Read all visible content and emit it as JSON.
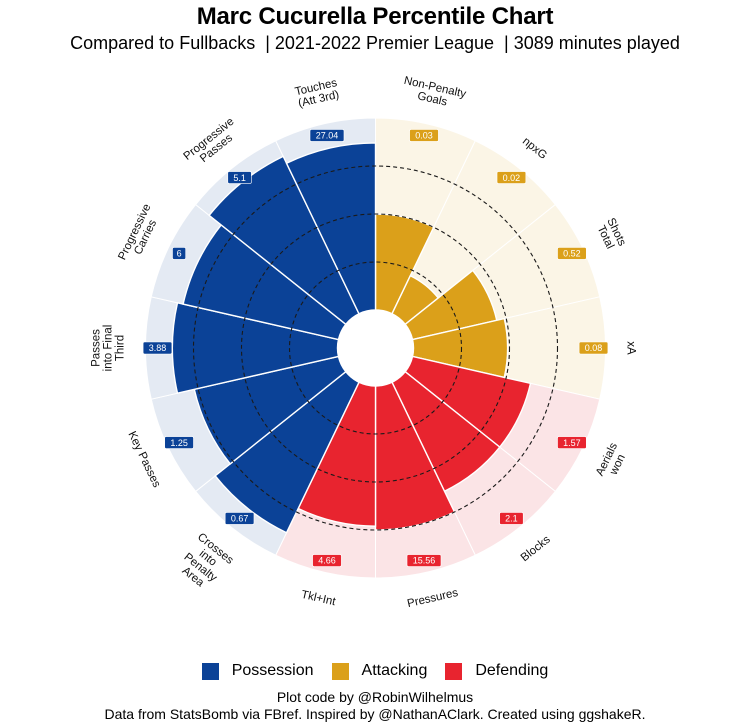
{
  "title": "Marc Cucurella Percentile Chart",
  "subtitle": "Compared to Fullbacks  | 2021-2022 Premier League  | 3089 minutes played",
  "legend": [
    {
      "label": "Possession",
      "color": "#0b4297"
    },
    {
      "label": "Attacking",
      "color": "#dba01a"
    },
    {
      "label": "Defending",
      "color": "#e8242f"
    }
  ],
  "caption": {
    "line1": "Plot code by @RobinWilhelmus",
    "line2": "Data from StatsBomb via FBref. Inspired by @NathanAClark. Created using ggshakeR."
  },
  "colors": {
    "Possession": {
      "bar": "#0b4297",
      "bg": "#e4eaf3"
    },
    "Attacking": {
      "bar": "#dba01a",
      "bg": "#fbf5e6"
    },
    "Defending": {
      "bar": "#e8242f",
      "bg": "#fbe4e6"
    }
  },
  "chart_data": {
    "type": "bar",
    "subtype": "polar-pizza",
    "title": "Marc Cucurella Percentile Chart",
    "subtitle": "Compared to Fullbacks | 2021-2022 Premier League | 3089 minutes played",
    "radial_axis": {
      "min": 0,
      "max": 100,
      "gridlines_dashed": [
        25,
        50,
        75
      ]
    },
    "legend_position": "bottom",
    "categories": [
      "Non-Penalty Goals",
      "npxG",
      "Shots Total",
      "xA",
      "Aerials won",
      "Blocks",
      "Pressures",
      "Tkl+Int",
      "Crosses into Penalty Area",
      "Key Passes",
      "Passes into Final Third",
      "Progressive Carries",
      "Progressive Passes",
      "Touches (Att 3rd)"
    ],
    "segments": [
      {
        "label": "Non-Penalty\nGoals",
        "group": "Attacking",
        "percentile": 50,
        "value": "0.03"
      },
      {
        "label": "npxG",
        "group": "Attacking",
        "percentile": 22,
        "value": "0.02"
      },
      {
        "label": "Shots\nTotal",
        "group": "Attacking",
        "percentile": 45,
        "value": "0.52"
      },
      {
        "label": "xA",
        "group": "Attacking",
        "percentile": 49,
        "value": "0.08"
      },
      {
        "label": "Aerials\nwon",
        "group": "Defending",
        "percentile": 63,
        "value": "1.57"
      },
      {
        "label": "Blocks",
        "group": "Defending",
        "percentile": 63,
        "value": "2.1"
      },
      {
        "label": "Pressures",
        "group": "Defending",
        "percentile": 75,
        "value": "15.56"
      },
      {
        "label": "Tkl+Int",
        "group": "Defending",
        "percentile": 73,
        "value": "4.66"
      },
      {
        "label": "Crosses\ninto\nPenalty\nArea",
        "group": "Possession",
        "percentile": 87,
        "value": "0.67"
      },
      {
        "label": "Key Passes",
        "group": "Possession",
        "percentile": 77,
        "value": "1.25"
      },
      {
        "label": "Passes\ninto Final\nThird",
        "group": "Possession",
        "percentile": 86,
        "value": "3.88"
      },
      {
        "label": "Progressive\nCarries",
        "group": "Possession",
        "percentile": 83,
        "value": "6"
      },
      {
        "label": "Progressive\nPasses",
        "group": "Possession",
        "percentile": 91,
        "value": "5.1"
      },
      {
        "label": "Touches\n(Att 3rd)",
        "group": "Possession",
        "percentile": 87,
        "value": "27.04"
      }
    ]
  }
}
